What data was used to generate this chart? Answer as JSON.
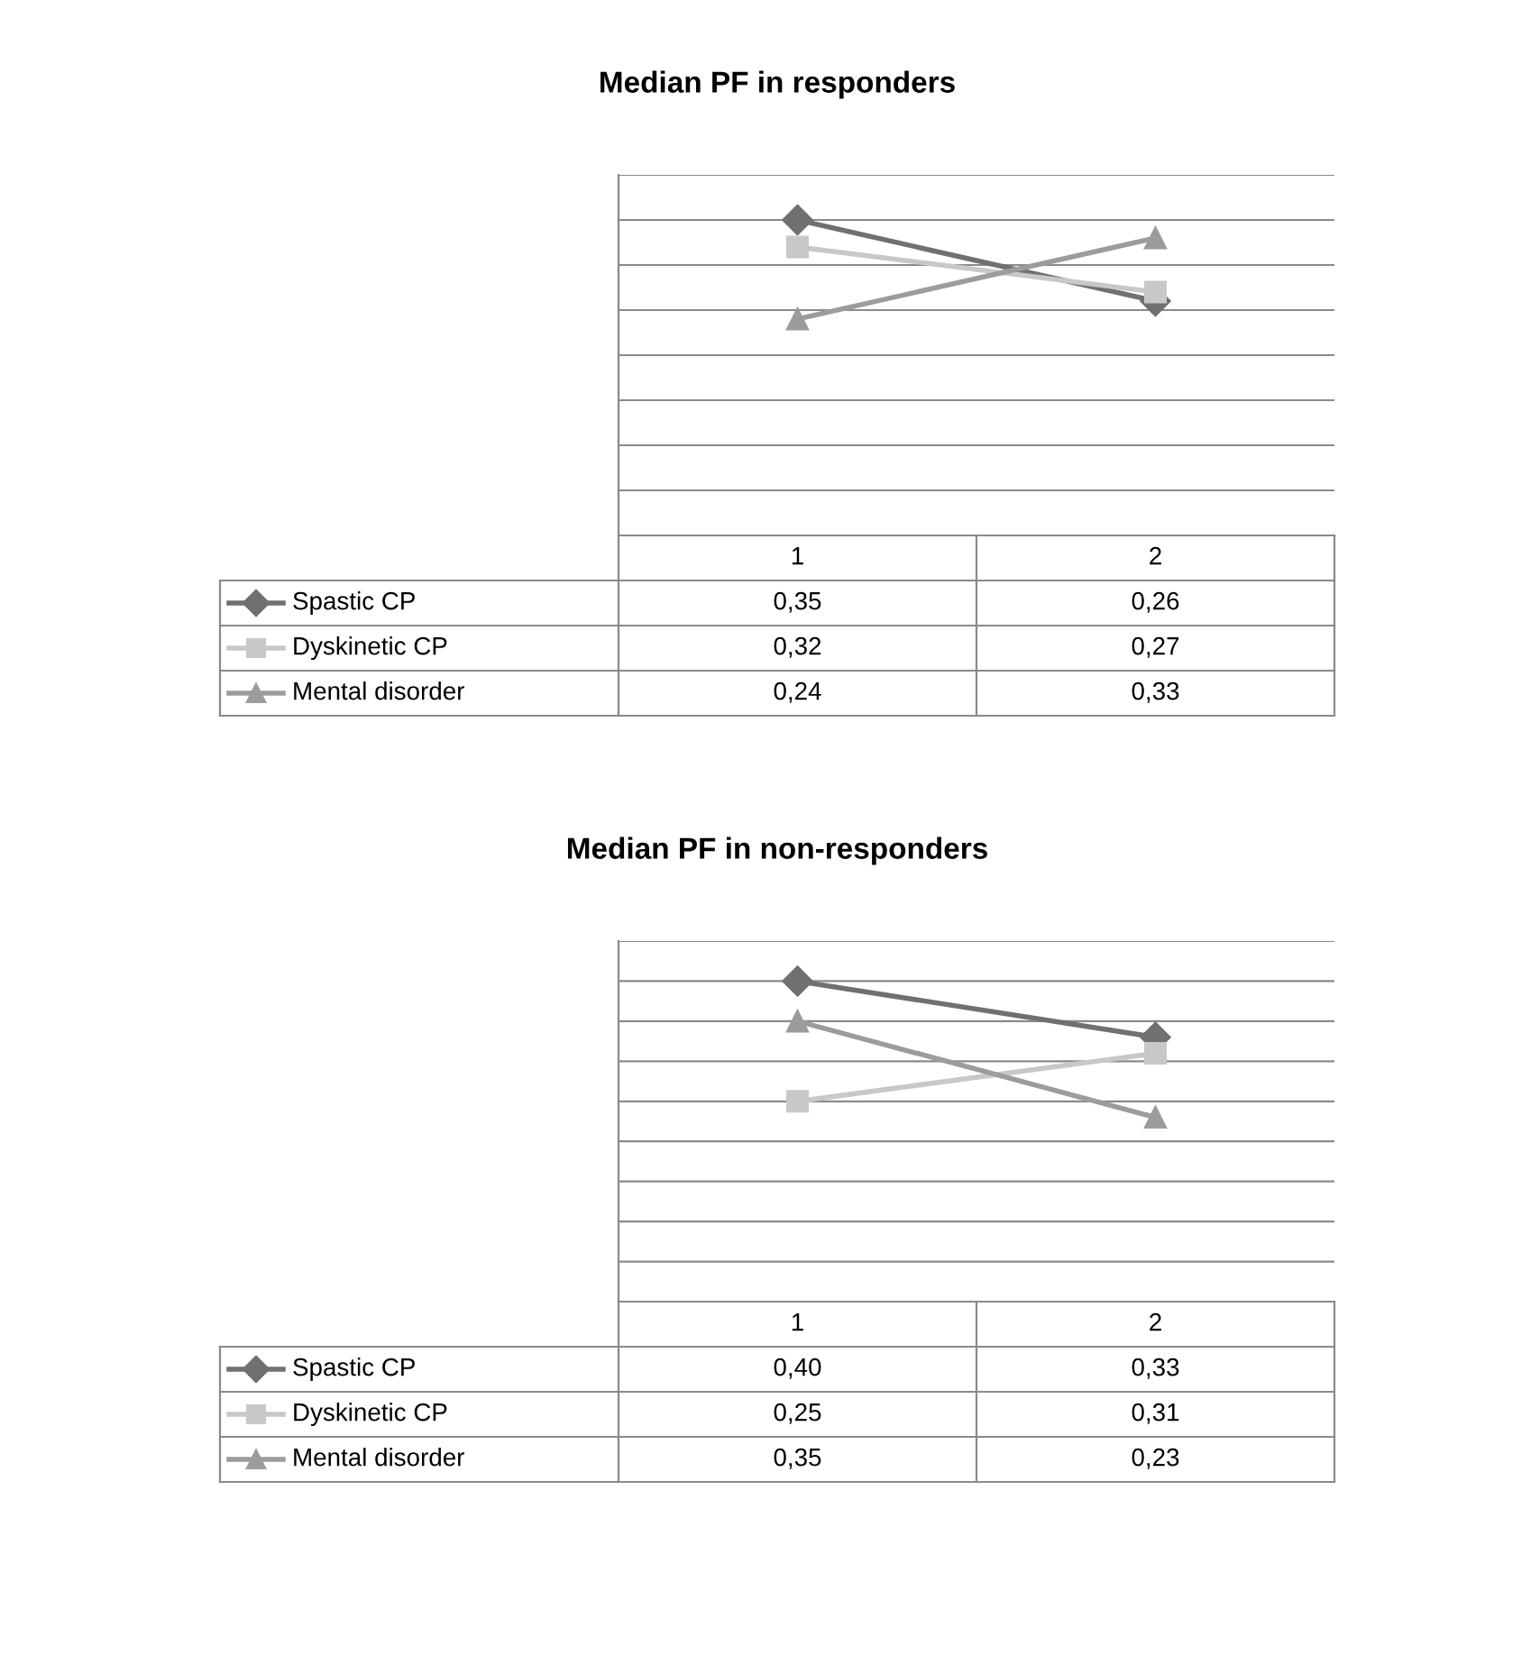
{
  "chart_data": [
    {
      "type": "line",
      "title": "Median PF in responders",
      "categories": [
        "1",
        "2"
      ],
      "ylim": [
        0,
        0.4
      ],
      "yticks": [
        {
          "value": 0,
          "label": null
        },
        {
          "value": 0.05,
          "label": null
        },
        {
          "value": 0.1,
          "label": null
        },
        {
          "value": 0.15,
          "label": null
        },
        {
          "value": 0.2,
          "label": null
        },
        {
          "value": 0.25,
          "label": null
        },
        {
          "value": 0.3,
          "label": null
        },
        {
          "value": 0.35,
          "label": null
        },
        {
          "value": 0.4,
          "label": null
        }
      ],
      "grid": "y",
      "legend": "bottom left",
      "series": [
        {
          "name": "Spastic CP",
          "color": "#707070",
          "marker": "diamond",
          "values": [
            0.35,
            0.26
          ],
          "value_labels": [
            "0,35",
            "0,26"
          ]
        },
        {
          "name": "Dyskinetic CP",
          "color": "#c8c8c8",
          "marker": "square",
          "values": [
            0.32,
            0.27
          ],
          "value_labels": [
            "0,32",
            "0,27"
          ]
        },
        {
          "name": "Mental disorder",
          "color": "#9c9c9c",
          "marker": "triangle",
          "values": [
            0.24,
            0.33
          ],
          "value_labels": [
            "0,24",
            "0,33"
          ]
        }
      ]
    },
    {
      "type": "line",
      "title": "Median PF in non-responders",
      "categories": [
        "1",
        "2"
      ],
      "ylim": [
        0,
        0.45
      ],
      "yticks": [
        {
          "value": 0,
          "label": null
        },
        {
          "value": 0.05,
          "label": null
        },
        {
          "value": 0.1,
          "label": null
        },
        {
          "value": 0.15,
          "label": null
        },
        {
          "value": 0.2,
          "label": null
        },
        {
          "value": 0.25,
          "label": null
        },
        {
          "value": 0.3,
          "label": null
        },
        {
          "value": 0.35,
          "label": null
        },
        {
          "value": 0.4,
          "label": null
        },
        {
          "value": 0.45,
          "label": null
        }
      ],
      "grid": "y",
      "legend": "bottom left",
      "series": [
        {
          "name": "Spastic CP",
          "color": "#707070",
          "marker": "diamond",
          "values": [
            0.4,
            0.33
          ],
          "value_labels": [
            "0,40",
            "0,33"
          ]
        },
        {
          "name": "Dyskinetic CP",
          "color": "#c8c8c8",
          "marker": "square",
          "values": [
            0.25,
            0.31
          ],
          "value_labels": [
            "0,25",
            "0,31"
          ]
        },
        {
          "name": "Mental disorder",
          "color": "#9c9c9c",
          "marker": "triangle",
          "values": [
            0.35,
            0.23
          ],
          "value_labels": [
            "0,35",
            "0,23"
          ]
        }
      ]
    }
  ]
}
